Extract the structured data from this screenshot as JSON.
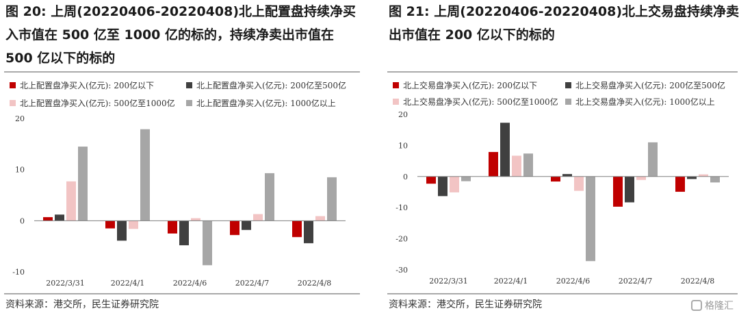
{
  "colors": {
    "s1": "#c00000",
    "s2": "#404040",
    "s3": "#f2c4c4",
    "s4": "#a6a6a6",
    "axis": "#7f7f7f",
    "rule": "#a9a9a9"
  },
  "left": {
    "title": "图 20: 上周(20220406-20220408)北上配置盘持续净买入市值在 500 亿至 1000 亿的标的，持续净卖出市值在 500 亿以下的标的",
    "source": "资料来源：港交所，民生证券研究院"
  },
  "right": {
    "title": "图 21: 上周(20220406-20220408)北上交易盘持续净卖出市值在 200 亿以下的标的",
    "source": "资料来源：港交所，民生证券研究院"
  },
  "watermark": "格隆汇",
  "chart_data": [
    {
      "type": "bar",
      "categories": [
        "2022/3/31",
        "2022/4/1",
        "2022/4/6",
        "2022/4/7",
        "2022/4/8"
      ],
      "series": [
        {
          "name": "北上配置盘净买入(亿元): 200亿以下",
          "values": [
            0.7,
            -1.5,
            -2.5,
            -2.8,
            -3.2
          ]
        },
        {
          "name": "北上配置盘净买入(亿元): 200亿至500亿",
          "values": [
            1.2,
            -3.9,
            -4.8,
            -1.8,
            -4.4
          ]
        },
        {
          "name": "北上配置盘净买入(亿元): 500亿至1000亿",
          "values": [
            7.7,
            -1.6,
            0.5,
            1.3,
            0.9
          ]
        },
        {
          "name": "北上配置盘净买入(亿元): 1000亿以上",
          "values": [
            14.5,
            17.9,
            -8.7,
            9.3,
            8.5
          ]
        }
      ],
      "ylim": [
        -10,
        20
      ],
      "yticks": [
        -10,
        0,
        10,
        20
      ],
      "legend": "top"
    },
    {
      "type": "bar",
      "categories": [
        "2022/3/31",
        "2022/4/1",
        "2022/4/6",
        "2022/4/7",
        "2022/4/8"
      ],
      "series": [
        {
          "name": "北上交易盘净买入(亿元): 200亿以下",
          "values": [
            -2.3,
            7.9,
            -1.6,
            -9.7,
            -4.9
          ]
        },
        {
          "name": "北上交易盘净买入(亿元): 200亿至500亿",
          "values": [
            -6.3,
            17.3,
            0.8,
            -8.3,
            -0.8
          ]
        },
        {
          "name": "北上交易盘净买入(亿元): 500亿至1000亿",
          "values": [
            -5.1,
            6.7,
            -4.6,
            -1.1,
            0.7
          ]
        },
        {
          "name": "北上交易盘净买入(亿元): 1000亿以上",
          "values": [
            -1.5,
            7.4,
            -27.2,
            11.0,
            -1.9
          ]
        }
      ],
      "ylim": [
        -30,
        20
      ],
      "yticks": [
        -30,
        -20,
        -10,
        0,
        10,
        20
      ],
      "legend": "top"
    }
  ]
}
